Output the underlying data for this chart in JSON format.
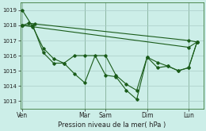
{
  "background_color": "#cceee8",
  "grid_color": "#aaccc8",
  "line_color": "#1a5c1a",
  "marker_color": "#1a5c1a",
  "title": "Pression niveau de la mer( hPa )",
  "ylabel_ticks": [
    1013,
    1014,
    1015,
    1016,
    1017,
    1018,
    1019
  ],
  "xlabels": [
    "Ven",
    "Mar",
    "Sam",
    "Dim",
    "Lun"
  ],
  "xlabels_x": [
    0.0,
    3.0,
    4.0,
    6.0,
    8.0
  ],
  "ylim": [
    1012.5,
    1019.5
  ],
  "xlim": [
    -0.1,
    8.7
  ],
  "line1_x": [
    0.0,
    0.5,
    1.0,
    1.5,
    2.0,
    2.5,
    3.0,
    3.5,
    4.0,
    4.5,
    5.0,
    5.5,
    6.0,
    6.5,
    7.0,
    7.5,
    8.0,
    8.4
  ],
  "line1_y": [
    1019.0,
    1017.9,
    1016.5,
    1015.8,
    1015.5,
    1014.8,
    1014.2,
    1016.0,
    1014.7,
    1014.6,
    1013.7,
    1013.1,
    1015.9,
    1015.55,
    1015.3,
    1015.0,
    1015.2,
    1016.9
  ],
  "line2_x": [
    0.0,
    0.5,
    1.0,
    1.5,
    2.0,
    2.5,
    3.0,
    4.0,
    4.5,
    5.0,
    5.5,
    6.0,
    6.5,
    7.0,
    7.5,
    8.0,
    8.4
  ],
  "line2_y": [
    1018.0,
    1018.0,
    1016.2,
    1015.5,
    1015.5,
    1016.0,
    1016.0,
    1016.0,
    1014.7,
    1014.1,
    1013.7,
    1015.9,
    1015.2,
    1015.3,
    1015.0,
    1015.2,
    1016.9
  ],
  "line3_x": [
    0.0,
    0.3,
    0.6,
    8.0,
    8.4
  ],
  "line3_y": [
    1018.0,
    1018.15,
    1018.1,
    1017.0,
    1016.9
  ],
  "line4_x": [
    0.0,
    8.0,
    8.4
  ],
  "line4_y": [
    1018.0,
    1016.55,
    1016.9
  ],
  "vline_positions": [
    0.0,
    3.0,
    4.0,
    6.0,
    8.0
  ]
}
